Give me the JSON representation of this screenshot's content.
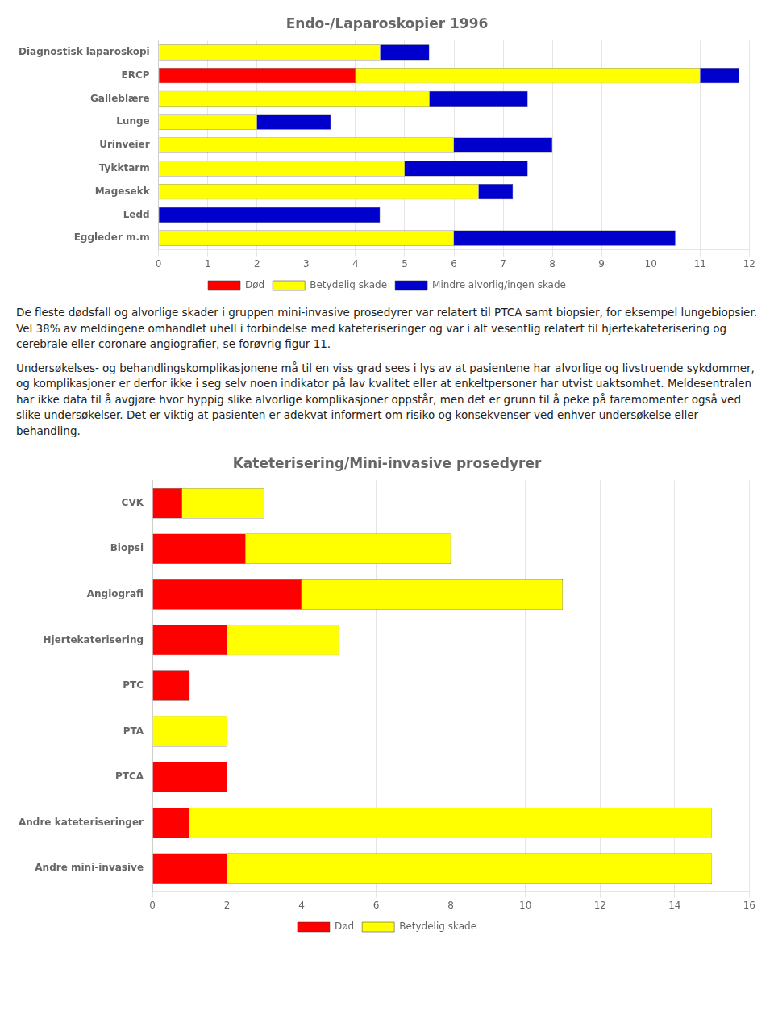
{
  "chart_data": [
    {
      "type": "bar",
      "orientation": "horizontal",
      "stacked": true,
      "grid": true,
      "legend": "bottom",
      "title": "Endo-/Laparoskopier 1996",
      "categories": [
        "Diagnostisk laparoskopi",
        "ERCP",
        "Galleblære",
        "Lunge",
        "Urinveier",
        "Tykktarm",
        "Magesekk",
        "Ledd",
        "Eggleder m.m"
      ],
      "series": [
        {
          "name": "Død",
          "color": "#ff0000",
          "values": [
            0,
            4,
            0,
            0,
            0,
            0,
            0,
            0,
            0
          ]
        },
        {
          "name": "Betydelig skade",
          "color": "#ffff00",
          "values": [
            4.5,
            7,
            5.5,
            2,
            6,
            5,
            6.5,
            0,
            6
          ]
        },
        {
          "name": "Mindre alvorlig/ingen skade",
          "color": "#0000cc",
          "values": [
            1,
            0.8,
            2,
            1.5,
            2,
            2.5,
            0.7,
            4.5,
            4.5
          ]
        }
      ],
      "xlim": [
        0,
        12
      ],
      "xticks": [
        0,
        1,
        2,
        3,
        4,
        5,
        6,
        7,
        8,
        9,
        10,
        11,
        12
      ],
      "annotations": [
        "De fleste dødsfall og alvorlige skader i gruppen mini-invasive prosedyrer var relatert til PTCA samt biopsier, for eksempel lungebiopsier. Vel 38% av meldingene omhandlet uhell i forbindelse med kateteriseringer og var i alt vesentlig relatert til hjertekateterisering og cerebrale eller coronare angiografier, se forøvrig figur 11.",
        " Undersøkelses- og behandlingskomplikasjonene må til en viss grad sees i lys av at pasientene har alvorlige og livstruende sykdommer, og komplikasjoner er derfor ikke i seg selv noen indikator på lav kvalitet eller at enkeltpersoner har utvist uaktsomhet. Meldesentralen har ikke data til å avgjøre hvor hyppig slike alvorlige komplikasjoner oppstår, men det er grunn til å peke på faremomenter også ved slike undersøkelser. Det er viktig at pasienten er adekvat informert om risiko og konsekvenser ved enhver undersøkelse eller behandling."
      ]
    },
    {
      "type": "bar",
      "orientation": "horizontal",
      "stacked": true,
      "grid": true,
      "legend": "bottom",
      "title": "Kateterisering/Mini-invasive prosedyrer",
      "categories": [
        "CVK",
        "Biopsi",
        "Angiografi",
        "Hjertekaterisering",
        "PTC",
        "PTA",
        "PTCA",
        "Andre kateteriseringer",
        "Andre mini-invasive"
      ],
      "series": [
        {
          "name": "Død",
          "color": "#ff0000",
          "values": [
            0.8,
            2.5,
            4,
            2,
            1,
            0,
            2,
            1,
            2
          ]
        },
        {
          "name": "Betydelig skade",
          "color": "#ffff00",
          "values": [
            2.2,
            5.5,
            7,
            3,
            0,
            2,
            0,
            14,
            13
          ]
        }
      ],
      "xlim": [
        0,
        16
      ],
      "xticks": [
        0,
        2,
        4,
        6,
        8,
        10,
        12,
        14,
        16
      ]
    }
  ]
}
